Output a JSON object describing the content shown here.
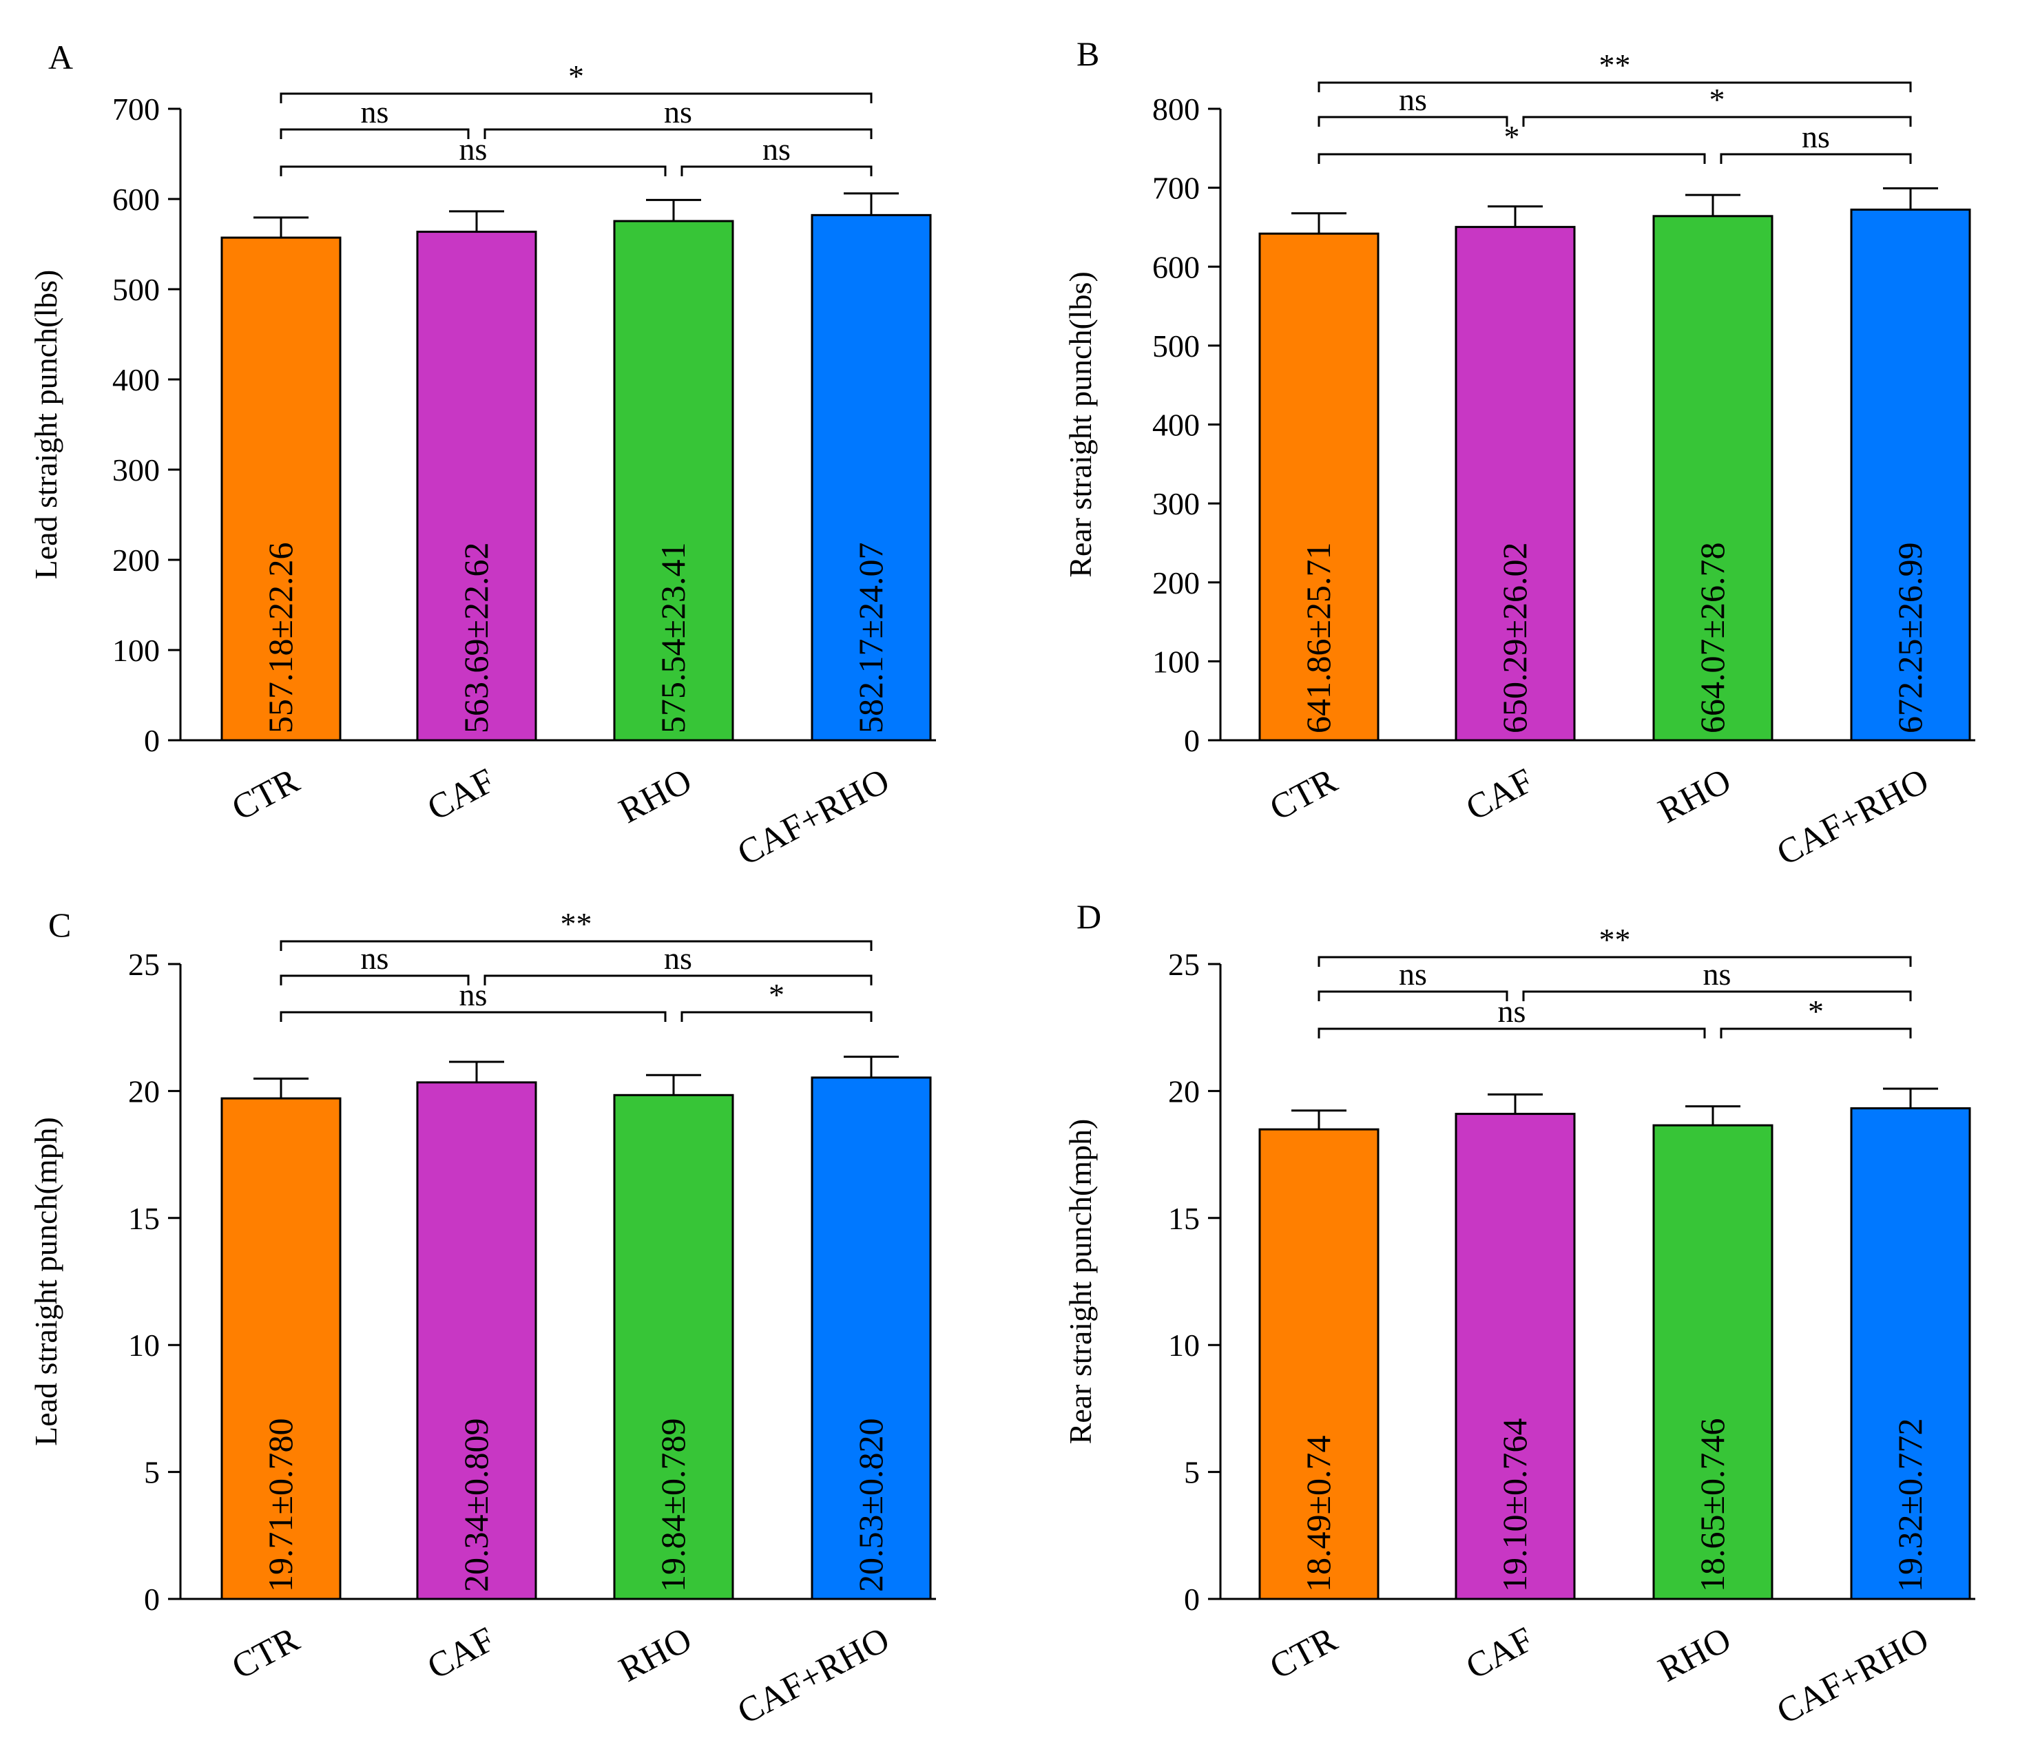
{
  "colors": {
    "CTR": "#ff7f00",
    "CAF": "#c837c4",
    "RHO": "#37c537",
    "CAF+RHO": "#0078ff"
  },
  "chart_data": [
    {
      "type": "bar",
      "panel": "A",
      "ylabel": "Lead straight punch(lbs)",
      "categories": [
        "CTR",
        "CAF",
        "RHO",
        "CAF+RHO"
      ],
      "values": [
        557.18,
        563.69,
        575.54,
        582.17
      ],
      "errors": [
        22.26,
        22.62,
        23.41,
        24.07
      ],
      "bar_labels": [
        "557.18±22.26",
        "563.69±22.62",
        "575.54±23.41",
        "582.17±24.07"
      ],
      "ylim": [
        0,
        700
      ],
      "yticks": [
        0,
        100,
        200,
        300,
        400,
        500,
        600,
        700
      ],
      "brackets": [
        {
          "from": 0,
          "to": 3,
          "label": "*",
          "level": 3
        },
        {
          "from": 0,
          "to": 1,
          "label": "ns",
          "level": 2
        },
        {
          "from": 1,
          "to": 3,
          "label": "ns",
          "level": 2
        },
        {
          "from": 0,
          "to": 2,
          "label": "ns",
          "level": 1
        },
        {
          "from": 2,
          "to": 3,
          "label": "ns",
          "level": 1
        }
      ]
    },
    {
      "type": "bar",
      "panel": "B",
      "ylabel": "Rear straight punch(lbs)",
      "categories": [
        "CTR",
        "CAF",
        "RHO",
        "CAF+RHO"
      ],
      "values": [
        641.86,
        650.29,
        664.07,
        672.25
      ],
      "errors": [
        25.71,
        26.02,
        26.78,
        26.99
      ],
      "bar_labels": [
        "641.86±25.71",
        "650.29±26.02",
        "664.07±26.78",
        "672.25±26.99"
      ],
      "ylim": [
        0,
        800
      ],
      "yticks": [
        0,
        100,
        200,
        300,
        400,
        500,
        600,
        700,
        800
      ],
      "brackets": [
        {
          "from": 0,
          "to": 3,
          "label": "**",
          "level": 3
        },
        {
          "from": 0,
          "to": 1,
          "label": "ns",
          "level": 2
        },
        {
          "from": 1,
          "to": 3,
          "label": "*",
          "level": 2
        },
        {
          "from": 0,
          "to": 2,
          "label": "*",
          "level": 1
        },
        {
          "from": 2,
          "to": 3,
          "label": "ns",
          "level": 1
        }
      ]
    },
    {
      "type": "bar",
      "panel": "C",
      "ylabel": "Lead straight punch(mph)",
      "categories": [
        "CTR",
        "CAF",
        "RHO",
        "CAF+RHO"
      ],
      "values": [
        19.71,
        20.34,
        19.84,
        20.53
      ],
      "errors": [
        0.78,
        0.809,
        0.789,
        0.82
      ],
      "bar_labels": [
        "19.71±0.780",
        "20.34±0.809",
        "19.84±0.789",
        "20.53±0.820"
      ],
      "ylim": [
        0,
        25
      ],
      "yticks": [
        0,
        5,
        10,
        15,
        20,
        25
      ],
      "brackets": [
        {
          "from": 0,
          "to": 3,
          "label": "**",
          "level": 3
        },
        {
          "from": 0,
          "to": 1,
          "label": "ns",
          "level": 2
        },
        {
          "from": 1,
          "to": 3,
          "label": "ns",
          "level": 2
        },
        {
          "from": 0,
          "to": 2,
          "label": "ns",
          "level": 1
        },
        {
          "from": 2,
          "to": 3,
          "label": "*",
          "level": 1
        }
      ]
    },
    {
      "type": "bar",
      "panel": "D",
      "ylabel": "Rear straight punch(mph)",
      "categories": [
        "CTR",
        "CAF",
        "RHO",
        "CAF+RHO"
      ],
      "values": [
        18.49,
        19.1,
        18.65,
        19.32
      ],
      "errors": [
        0.74,
        0.764,
        0.746,
        0.772
      ],
      "bar_labels": [
        "18.49±0.74",
        "19.10±0.764",
        "18.65±0.746",
        "19.32±0.772"
      ],
      "ylim": [
        0,
        25
      ],
      "yticks": [
        0,
        5,
        10,
        15,
        20,
        25
      ],
      "brackets": [
        {
          "from": 0,
          "to": 3,
          "label": "**",
          "level": 3
        },
        {
          "from": 0,
          "to": 1,
          "label": "ns",
          "level": 2
        },
        {
          "from": 1,
          "to": 3,
          "label": "ns",
          "level": 2
        },
        {
          "from": 0,
          "to": 2,
          "label": "ns",
          "level": 1
        },
        {
          "from": 2,
          "to": 3,
          "label": "*",
          "level": 1
        }
      ]
    }
  ]
}
